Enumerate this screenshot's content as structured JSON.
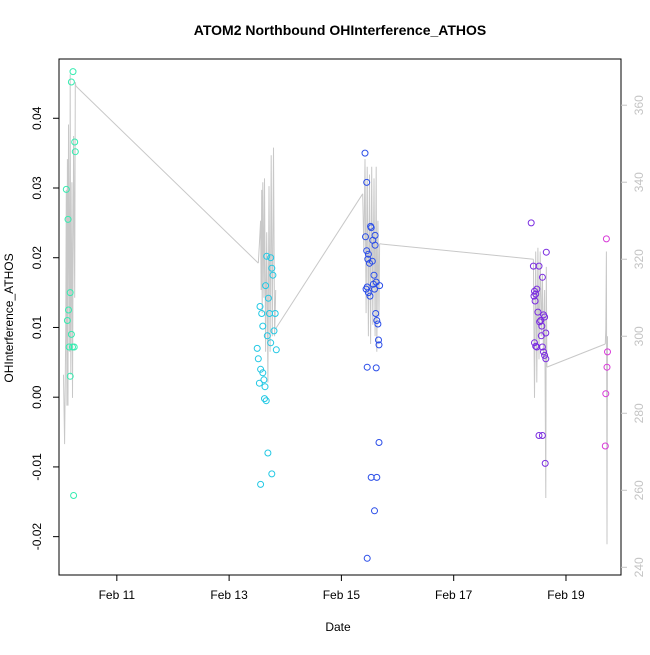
{
  "chart_data": {
    "type": "scatter",
    "title": "ATOM2 Northbound OHInterference_ATHOS",
    "xlabel": "Date",
    "ylabel": "OHInterference_ATHOS",
    "x_unit": "days (February 2017)",
    "xlim": [
      9.97,
      19.98
    ],
    "ylim": [
      -0.0255,
      0.0485
    ],
    "y2lim": [
      238,
      372
    ],
    "x_ticks": [
      {
        "value": 11,
        "label": "Feb 11"
      },
      {
        "value": 13,
        "label": "Feb 13"
      },
      {
        "value": 15,
        "label": "Feb 15"
      },
      {
        "value": 17,
        "label": "Feb 17"
      },
      {
        "value": 19,
        "label": "Feb 19"
      }
    ],
    "y_ticks": [
      {
        "value": -0.02,
        "label": "-0.02"
      },
      {
        "value": -0.01,
        "label": "-0.01"
      },
      {
        "value": 0.0,
        "label": "0.00"
      },
      {
        "value": 0.01,
        "label": "0.01"
      },
      {
        "value": 0.02,
        "label": "0.02"
      },
      {
        "value": 0.03,
        "label": "0.03"
      },
      {
        "value": 0.04,
        "label": "0.04"
      }
    ],
    "y2_ticks": [
      {
        "value": 240,
        "label": "240"
      },
      {
        "value": 260,
        "label": "260"
      },
      {
        "value": 280,
        "label": "280"
      },
      {
        "value": 300,
        "label": "300"
      },
      {
        "value": 320,
        "label": "320"
      },
      {
        "value": 340,
        "label": "340"
      },
      {
        "value": 360,
        "label": "360"
      }
    ],
    "grid": false,
    "legend": "none",
    "point_colors": {
      "flight1": "#35ecb0",
      "flight2": "#22c8e4",
      "flight3": "#2a4de8",
      "flight4": "#7a2ce0",
      "flight5": "#d83ad8"
    },
    "line_color": "#c8c8c8",
    "secondary_axis_color": "#c4c4c4",
    "series": [
      {
        "color_key": "flight1",
        "points": [
          [
            10.1,
            0.0298
          ],
          [
            10.13,
            0.0255
          ],
          [
            10.12,
            0.011
          ],
          [
            10.14,
            0.0125
          ],
          [
            10.15,
            0.0072
          ],
          [
            10.17,
            0.015
          ],
          [
            10.19,
            0.009
          ],
          [
            10.21,
            0.0072
          ],
          [
            10.17,
            0.003
          ],
          [
            10.19,
            0.0452
          ],
          [
            10.22,
            0.0467
          ],
          [
            10.25,
            0.0366
          ],
          [
            10.26,
            0.0352
          ],
          [
            10.24,
            0.0072
          ],
          [
            10.23,
            -0.0141
          ]
        ]
      },
      {
        "color_key": "flight2",
        "points": [
          [
            13.5,
            0.007
          ],
          [
            13.55,
            0.013
          ],
          [
            13.52,
            0.0055
          ],
          [
            13.58,
            0.012
          ],
          [
            13.56,
            0.004
          ],
          [
            13.54,
            0.002
          ],
          [
            13.6,
            0.0035
          ],
          [
            13.62,
            0.0025
          ],
          [
            13.65,
            0.016
          ],
          [
            13.67,
            0.0202
          ],
          [
            13.7,
            0.0142
          ],
          [
            13.72,
            0.012
          ],
          [
            13.74,
            0.02
          ],
          [
            13.76,
            0.0185
          ],
          [
            13.78,
            0.0175
          ],
          [
            13.8,
            0.0095
          ],
          [
            13.82,
            0.012
          ],
          [
            13.84,
            0.0068
          ],
          [
            13.6,
            0.0102
          ],
          [
            13.68,
            0.0088
          ],
          [
            13.74,
            0.0078
          ],
          [
            13.64,
            0.0015
          ],
          [
            13.63,
            -0.0002
          ],
          [
            13.66,
            -0.0005
          ],
          [
            13.69,
            -0.008
          ],
          [
            13.76,
            -0.011
          ],
          [
            13.56,
            -0.0125
          ]
        ]
      },
      {
        "color_key": "flight3",
        "points": [
          [
            15.42,
            0.035
          ],
          [
            15.45,
            0.0308
          ],
          [
            15.43,
            0.023
          ],
          [
            15.45,
            0.021
          ],
          [
            15.48,
            0.0205
          ],
          [
            15.5,
            0.0192
          ],
          [
            15.47,
            0.0198
          ],
          [
            15.52,
            0.0245
          ],
          [
            15.53,
            0.0243
          ],
          [
            15.56,
            0.0225
          ],
          [
            15.6,
            0.0218
          ],
          [
            15.55,
            0.0195
          ],
          [
            15.58,
            0.0175
          ],
          [
            15.62,
            0.0165
          ],
          [
            15.68,
            0.016
          ],
          [
            15.44,
            0.0155
          ],
          [
            15.46,
            0.0158
          ],
          [
            15.48,
            0.015
          ],
          [
            15.51,
            0.0145
          ],
          [
            15.57,
            0.0162
          ],
          [
            15.59,
            0.0155
          ],
          [
            15.61,
            0.012
          ],
          [
            15.63,
            0.011
          ],
          [
            15.65,
            0.0105
          ],
          [
            15.66,
            0.0082
          ],
          [
            15.67,
            0.0075
          ],
          [
            15.46,
            0.0043
          ],
          [
            15.62,
            0.0042
          ],
          [
            15.67,
            -0.0065
          ],
          [
            15.53,
            -0.0115
          ],
          [
            15.63,
            -0.0115
          ],
          [
            15.59,
            -0.0163
          ],
          [
            15.46,
            -0.0231
          ],
          [
            15.6,
            0.0232
          ]
        ]
      },
      {
        "color_key": "flight4",
        "points": [
          [
            18.38,
            0.025
          ],
          [
            18.42,
            0.0188
          ],
          [
            18.44,
            0.0152
          ],
          [
            18.46,
            0.0148
          ],
          [
            18.43,
            0.0145
          ],
          [
            18.45,
            0.0138
          ],
          [
            18.48,
            0.0155
          ],
          [
            18.52,
            0.0188
          ],
          [
            18.58,
            0.0172
          ],
          [
            18.65,
            0.0208
          ],
          [
            18.5,
            0.0122
          ],
          [
            18.53,
            0.0108
          ],
          [
            18.55,
            0.011
          ],
          [
            18.57,
            0.0102
          ],
          [
            18.6,
            0.0118
          ],
          [
            18.62,
            0.0115
          ],
          [
            18.64,
            0.0092
          ],
          [
            18.56,
            0.0088
          ],
          [
            18.44,
            0.0078
          ],
          [
            18.46,
            0.0073
          ],
          [
            18.48,
            0.0072
          ],
          [
            18.58,
            0.0072
          ],
          [
            18.6,
            0.0065
          ],
          [
            18.62,
            0.006
          ],
          [
            18.64,
            0.0055
          ],
          [
            18.52,
            -0.0055
          ],
          [
            18.58,
            -0.0055
          ],
          [
            18.63,
            -0.0095
          ]
        ]
      },
      {
        "color_key": "flight5",
        "points": [
          [
            19.72,
            0.0227
          ],
          [
            19.74,
            0.0065
          ],
          [
            19.73,
            0.0043
          ],
          [
            19.71,
            0.0005
          ],
          [
            19.7,
            -0.007
          ]
        ]
      }
    ],
    "secondary_line_segments": [
      {
        "y_axis": "right",
        "points": [
          [
            10.05,
            290
          ],
          [
            10.07,
            272
          ],
          [
            10.09,
            300
          ],
          [
            10.1,
            338
          ],
          [
            10.11,
            282
          ],
          [
            10.12,
            346
          ],
          [
            10.13,
            282
          ],
          [
            10.14,
            355
          ],
          [
            10.16,
            296
          ],
          [
            10.17,
            368
          ],
          [
            10.18,
            290
          ],
          [
            10.2,
            340
          ],
          [
            10.21,
            284
          ],
          [
            10.23,
            352
          ],
          [
            10.25,
            310
          ],
          [
            10.26,
            366
          ],
          [
            10.27,
            365
          ]
        ]
      },
      {
        "y_axis": "right",
        "points": [
          [
            10.27,
            365
          ],
          [
            13.52,
            319
          ]
        ]
      },
      {
        "y_axis": "right",
        "points": [
          [
            13.52,
            319
          ],
          [
            13.54,
            324
          ],
          [
            13.56,
            330
          ],
          [
            13.57,
            312
          ],
          [
            13.58,
            338
          ],
          [
            13.59,
            306
          ],
          [
            13.6,
            340
          ],
          [
            13.62,
            310
          ],
          [
            13.63,
            341
          ],
          [
            13.65,
            296
          ],
          [
            13.67,
            327
          ],
          [
            13.69,
            288
          ],
          [
            13.71,
            339
          ],
          [
            13.73,
            296
          ],
          [
            13.75,
            347
          ],
          [
            13.77,
            300
          ],
          [
            13.79,
            349
          ],
          [
            13.81,
            300
          ],
          [
            13.83,
            312
          ]
        ]
      },
      {
        "y_axis": "right",
        "points": [
          [
            13.83,
            302
          ],
          [
            15.38,
            337
          ]
        ]
      },
      {
        "y_axis": "right",
        "points": [
          [
            15.38,
            337
          ],
          [
            15.4,
            322
          ],
          [
            15.42,
            346
          ],
          [
            15.44,
            306
          ],
          [
            15.46,
            344
          ],
          [
            15.48,
            300
          ],
          [
            15.5,
            342
          ],
          [
            15.52,
            298
          ],
          [
            15.54,
            344
          ],
          [
            15.56,
            303
          ],
          [
            15.58,
            341
          ],
          [
            15.6,
            300
          ],
          [
            15.62,
            344
          ],
          [
            15.63,
            296
          ],
          [
            15.65,
            330
          ],
          [
            15.67,
            305
          ],
          [
            15.68,
            324
          ]
        ]
      },
      {
        "y_axis": "right",
        "points": [
          [
            15.68,
            324
          ],
          [
            18.42,
            320
          ]
        ]
      },
      {
        "y_axis": "right",
        "points": [
          [
            18.42,
            320
          ],
          [
            18.44,
            284
          ],
          [
            18.46,
            322
          ],
          [
            18.48,
            288
          ],
          [
            18.5,
            323
          ],
          [
            18.52,
            294
          ],
          [
            18.54,
            322
          ],
          [
            18.56,
            300
          ],
          [
            18.58,
            316
          ],
          [
            18.6,
            294
          ],
          [
            18.62,
            312
          ],
          [
            18.64,
            258
          ],
          [
            18.65,
            318
          ],
          [
            18.66,
            292
          ]
        ]
      },
      {
        "y_axis": "right",
        "points": [
          [
            18.66,
            292
          ],
          [
            19.7,
            298
          ]
        ]
      },
      {
        "y_axis": "right",
        "points": [
          [
            19.7,
            298
          ],
          [
            19.71,
            302
          ],
          [
            19.72,
            322
          ],
          [
            19.73,
            246
          ],
          [
            19.74,
            300
          ]
        ]
      }
    ]
  }
}
